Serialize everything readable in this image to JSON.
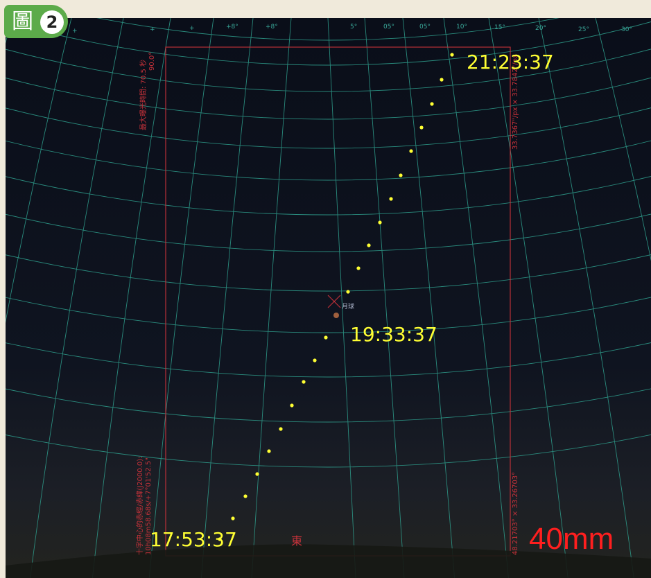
{
  "badge": {
    "glyph": "圖",
    "number": "2"
  },
  "colors": {
    "sky": "#0b0f1a",
    "grid": "#2fa08e",
    "fov_frame": "#c8323a",
    "moon_track": "#ffff33",
    "focal_text": "#ff1f1f",
    "badge_bg": "#5cab4a"
  },
  "times": {
    "start": "17:53:37",
    "middle": "19:33:37",
    "end": "21:23:37"
  },
  "object": {
    "name": "月球"
  },
  "direction": {
    "label": "東"
  },
  "lens": {
    "focal_length": "40mm"
  },
  "hud": {
    "top_left": "最大曝光時間: 70.5 秒",
    "top_left_angle": "90.0°",
    "top_right": "33.7367\"/px × 33.7842\"/px",
    "bottom_left_line1": "十字中心的赤經/赤緯(J2000.0):",
    "bottom_left_line2": "10h08m58.68s/+7°01'52.5\"",
    "bottom_right": "48.21703° × 33.26703°"
  },
  "grid_ticks": [
    "+",
    "+",
    "+",
    "+8°",
    "+8°",
    "5°",
    "05°",
    "10°",
    "05°",
    "10°",
    "15°",
    "20°",
    "25°",
    "30°"
  ],
  "track_points": 20
}
